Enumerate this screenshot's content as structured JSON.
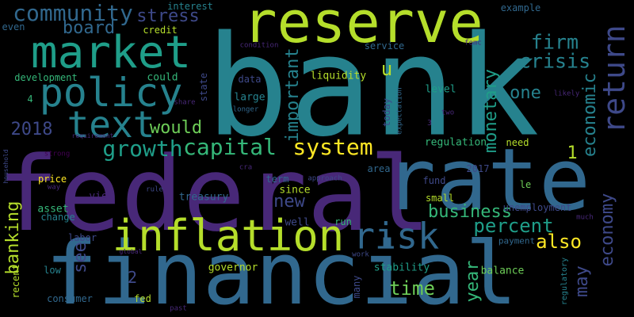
{
  "background": "#000000",
  "palette": {
    "purple": "#482878",
    "deep_purple": "#440154",
    "indigo": "#3e4989",
    "blue": "#31688e",
    "teal": "#26828e",
    "green_teal": "#1f9e89",
    "green": "#35b779",
    "light_green": "#6ece58",
    "yellow_green": "#b5de2b",
    "yellow": "#fde725"
  },
  "words": [
    {
      "text": "bank",
      "color": "#26828e",
      "vertical": false
    },
    {
      "text": "federal",
      "color": "#482878",
      "vertical": false
    },
    {
      "text": "financial",
      "color": "#31688e",
      "vertical": false
    },
    {
      "text": "rate",
      "color": "#31688e",
      "vertical": false
    },
    {
      "text": "reserve",
      "color": "#b5de2b",
      "vertical": false
    },
    {
      "text": "market",
      "color": "#1f9e89",
      "vertical": false
    },
    {
      "text": "inflation",
      "color": "#b5de2b",
      "vertical": false
    },
    {
      "text": "policy",
      "color": "#26828e",
      "vertical": false
    },
    {
      "text": "risk",
      "color": "#31688e",
      "vertical": false
    },
    {
      "text": "text",
      "color": "#26828e",
      "vertical": false
    },
    {
      "text": "return",
      "color": "#3e4989",
      "vertical": true
    },
    {
      "text": "community",
      "color": "#31688e",
      "vertical": false
    },
    {
      "text": "capital",
      "color": "#35b779",
      "vertical": false
    },
    {
      "text": "system",
      "color": "#fde725",
      "vertical": false
    },
    {
      "text": "growth",
      "color": "#1f9e89",
      "vertical": false
    },
    {
      "text": "stress",
      "color": "#3e4989",
      "vertical": false
    },
    {
      "text": "board",
      "color": "#31688e",
      "vertical": false
    },
    {
      "text": "firm",
      "color": "#26828e",
      "vertical": false
    },
    {
      "text": "crisis",
      "color": "#26828e",
      "vertical": false
    },
    {
      "text": "one",
      "color": "#26828e",
      "vertical": false
    },
    {
      "text": "would",
      "color": "#6ece58",
      "vertical": false
    },
    {
      "text": "2018",
      "color": "#3e4989",
      "vertical": false
    },
    {
      "text": "business",
      "color": "#35b779",
      "vertical": false
    },
    {
      "text": "percent",
      "color": "#1f9e89",
      "vertical": false
    },
    {
      "text": "also",
      "color": "#fde725",
      "vertical": false
    },
    {
      "text": "time",
      "color": "#6ece58",
      "vertical": false
    },
    {
      "text": "new",
      "color": "#3e4989",
      "vertical": false
    },
    {
      "text": "u",
      "color": "#b5de2b",
      "vertical": false
    },
    {
      "text": "1",
      "color": "#b5de2b",
      "vertical": false
    },
    {
      "text": "2",
      "color": "#3e4989",
      "vertical": false
    },
    {
      "text": "economic",
      "color": "#26828e",
      "vertical": true
    },
    {
      "text": "monetary",
      "color": "#1f9e89",
      "vertical": true
    },
    {
      "text": "important",
      "color": "#26828e",
      "vertical": true
    },
    {
      "text": "economy",
      "color": "#3e4989",
      "vertical": true
    },
    {
      "text": "banking",
      "color": "#b5de2b",
      "vertical": true
    },
    {
      "text": "see",
      "color": "#3e4989",
      "vertical": true
    },
    {
      "text": "year",
      "color": "#35b779",
      "vertical": true
    },
    {
      "text": "may",
      "color": "#3e4989",
      "vertical": true
    },
    {
      "text": "interest",
      "color": "#26828e",
      "vertical": false
    },
    {
      "text": "credit",
      "color": "#b5de2b",
      "vertical": false
    },
    {
      "text": "even",
      "color": "#31688e",
      "vertical": false
    },
    {
      "text": "development",
      "color": "#35b779",
      "vertical": false
    },
    {
      "text": "could",
      "color": "#35b779",
      "vertical": false
    },
    {
      "text": "state",
      "color": "#3e4989",
      "vertical": true
    },
    {
      "text": "data",
      "color": "#3e4989",
      "vertical": false
    },
    {
      "text": "large",
      "color": "#26828e",
      "vertical": false
    },
    {
      "text": "longer",
      "color": "#31688e",
      "vertical": false
    },
    {
      "text": "liquidity",
      "color": "#b5de2b",
      "vertical": false
    },
    {
      "text": "level",
      "color": "#1f9e89",
      "vertical": false
    },
    {
      "text": "today",
      "color": "#3e4989",
      "vertical": true
    },
    {
      "text": "expectation",
      "color": "#31688e",
      "vertical": true
    },
    {
      "text": "service",
      "color": "#31688e",
      "vertical": false
    },
    {
      "text": "condition",
      "color": "#482878",
      "vertical": false
    },
    {
      "text": "fomc",
      "color": "#482878",
      "vertical": false
    },
    {
      "text": "example",
      "color": "#31688e",
      "vertical": false
    },
    {
      "text": "likely",
      "color": "#482878",
      "vertical": false
    },
    {
      "text": "two",
      "color": "#482878",
      "vertical": false
    },
    {
      "text": "3",
      "color": "#482878",
      "vertical": false
    },
    {
      "text": "4",
      "color": "#35b779",
      "vertical": false
    },
    {
      "text": "share",
      "color": "#482878",
      "vertical": false
    },
    {
      "text": "regulation",
      "color": "#35b779",
      "vertical": false
    },
    {
      "text": "need",
      "color": "#b5de2b",
      "vertical": false
    },
    {
      "text": "household",
      "color": "#3e4989",
      "vertical": true
    },
    {
      "text": "strong",
      "color": "#440154",
      "vertical": false
    },
    {
      "text": "requirement",
      "color": "#482878",
      "vertical": false
    },
    {
      "text": "cra",
      "color": "#482878",
      "vertical": false
    },
    {
      "text": "approach",
      "color": "#3e4989",
      "vertical": false
    },
    {
      "text": "price",
      "color": "#fde725",
      "vertical": false
    },
    {
      "text": "way",
      "color": "#482878",
      "vertical": false
    },
    {
      "text": "rule",
      "color": "#3e4989",
      "vertical": false
    },
    {
      "text": "area",
      "color": "#31688e",
      "vertical": false
    },
    {
      "text": "2017",
      "color": "#3e4989",
      "vertical": false
    },
    {
      "text": "le",
      "color": "#6ece58",
      "vertical": false
    },
    {
      "text": "fund",
      "color": "#3e4989",
      "vertical": false
    },
    {
      "text": "term",
      "color": "#31688e",
      "vertical": false
    },
    {
      "text": "since",
      "color": "#b5de2b",
      "vertical": false
    },
    {
      "text": "small",
      "color": "#b5de2b",
      "vertical": false
    },
    {
      "text": "treasury",
      "color": "#31688e",
      "vertical": false
    },
    {
      "text": "view",
      "color": "#482878",
      "vertical": false
    },
    {
      "text": "asset",
      "color": "#35b779",
      "vertical": false
    },
    {
      "text": "change",
      "color": "#26828e",
      "vertical": false
    },
    {
      "text": "well",
      "color": "#3e4989",
      "vertical": false
    },
    {
      "text": "run",
      "color": "#35b779",
      "vertical": false
    },
    {
      "text": "unemployment",
      "color": "#3e4989",
      "vertical": false
    },
    {
      "text": "much",
      "color": "#482878",
      "vertical": false
    },
    {
      "text": "labor",
      "color": "#3e4989",
      "vertical": false
    },
    {
      "text": "payment",
      "color": "#31688e",
      "vertical": false
    },
    {
      "text": "global",
      "color": "#482878",
      "vertical": false
    },
    {
      "text": "work",
      "color": "#3e4989",
      "vertical": false
    },
    {
      "text": "regulatory",
      "color": "#26828e",
      "vertical": true
    },
    {
      "text": "recent",
      "color": "#b5de2b",
      "vertical": true
    },
    {
      "text": "low",
      "color": "#26828e",
      "vertical": false
    },
    {
      "text": "governor",
      "color": "#b5de2b",
      "vertical": false
    },
    {
      "text": "stability",
      "color": "#1f9e89",
      "vertical": false
    },
    {
      "text": "balance",
      "color": "#6ece58",
      "vertical": false
    },
    {
      "text": "many",
      "color": "#3e4989",
      "vertical": true
    },
    {
      "text": "consumer",
      "color": "#31688e",
      "vertical": false
    },
    {
      "text": "fed",
      "color": "#b5de2b",
      "vertical": false
    },
    {
      "text": "past",
      "color": "#482878",
      "vertical": false
    }
  ]
}
